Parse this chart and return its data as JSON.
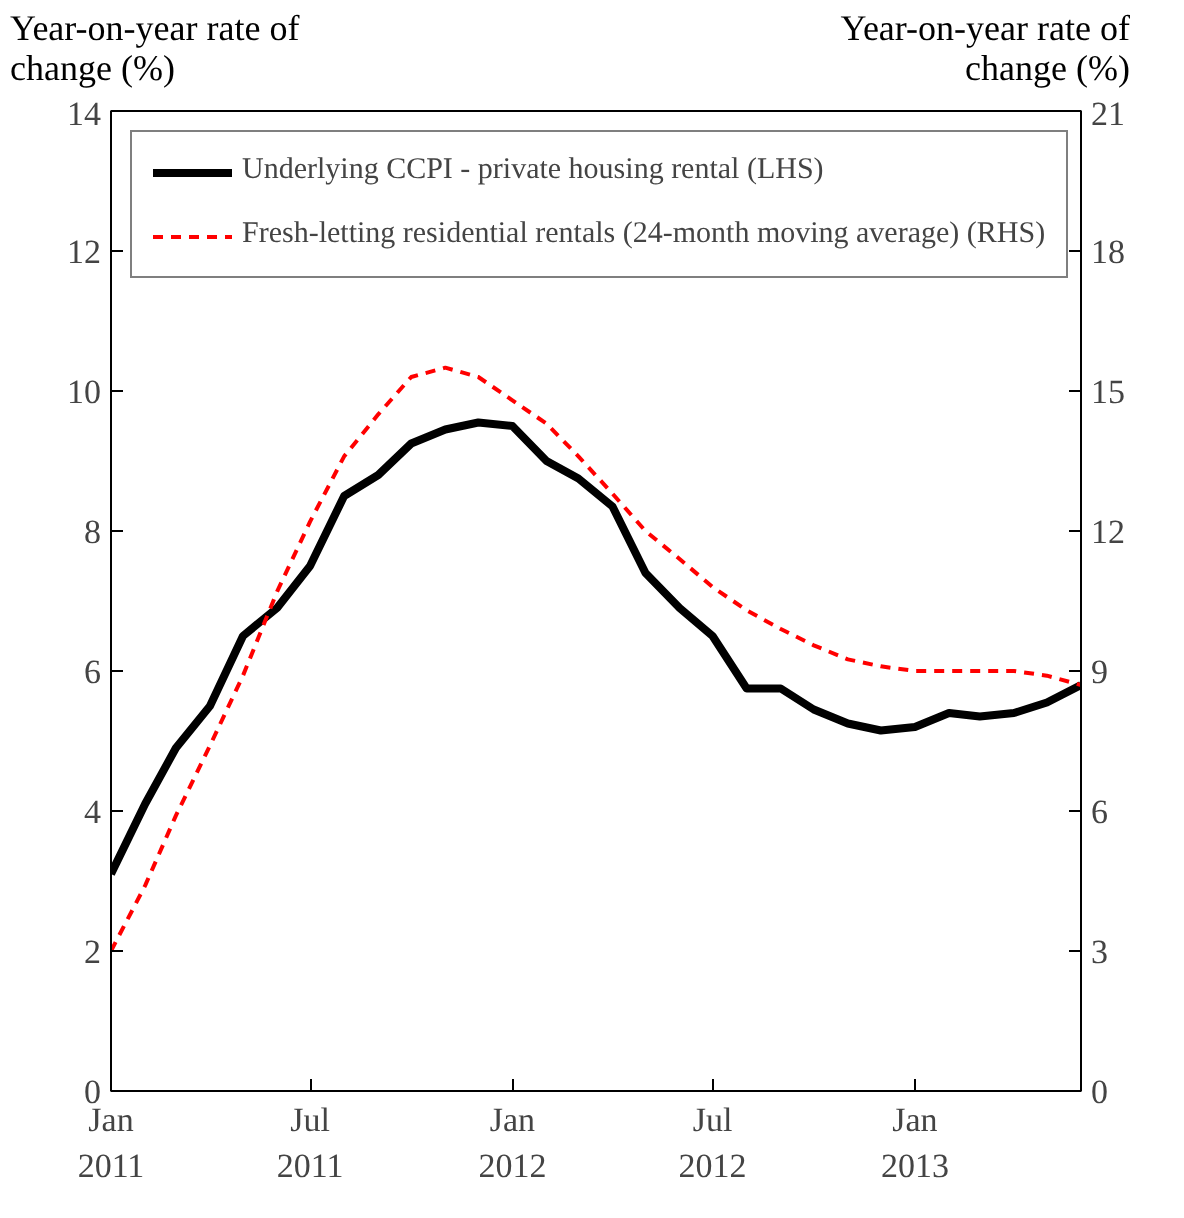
{
  "chart_data": {
    "type": "line",
    "ylabel": "Year-on-year rate of change (%)",
    "y2label": "Year-on-year rate of change (%)",
    "x": [
      "2011-01",
      "2011-02",
      "2011-03",
      "2011-04",
      "2011-05",
      "2011-06",
      "2011-07",
      "2011-08",
      "2011-09",
      "2011-10",
      "2011-11",
      "2011-12",
      "2012-01",
      "2012-02",
      "2012-03",
      "2012-04",
      "2012-05",
      "2012-06",
      "2012-07",
      "2012-08",
      "2012-09",
      "2012-10",
      "2012-11",
      "2012-12",
      "2013-01",
      "2013-02",
      "2013-03",
      "2013-04",
      "2013-05",
      "2013-06"
    ],
    "series": [
      {
        "name": "Underlying CCPI - private housing rental (LHS)",
        "color": "#000000",
        "line_style": "solid",
        "values": [
          3.1,
          4.1,
          4.9,
          5.5,
          6.5,
          6.9,
          7.5,
          8.5,
          8.8,
          9.25,
          9.45,
          9.55,
          9.5,
          9.0,
          8.75,
          8.35,
          7.4,
          6.9,
          6.5,
          5.75,
          5.75,
          5.45,
          5.25,
          5.15,
          5.2,
          5.4,
          5.35,
          5.4,
          5.55,
          5.8
        ]
      },
      {
        "name": "Fresh-letting residential rentals (24-month moving average) (RHS)",
        "color": "#ff0000",
        "line_style": "dashed",
        "axis": "y2",
        "values": [
          3.0,
          4.4,
          5.9,
          7.4,
          8.9,
          10.7,
          12.2,
          13.6,
          14.5,
          15.3,
          15.5,
          15.3,
          14.8,
          14.3,
          13.6,
          12.8,
          12.0,
          11.4,
          10.8,
          10.3,
          9.9,
          9.55,
          9.25,
          9.1,
          9.0,
          9.0,
          9.0,
          9.0,
          8.9,
          8.7
        ]
      }
    ],
    "xlim": [
      "2011-01",
      "2013-06"
    ],
    "xticks": [
      {
        "value": "2011-01",
        "label": "Jan\n2011"
      },
      {
        "value": "2011-07",
        "label": "Jul\n2011"
      },
      {
        "value": "2012-01",
        "label": "Jan\n2012"
      },
      {
        "value": "2012-07",
        "label": "Jul\n2012"
      },
      {
        "value": "2013-01",
        "label": "Jan\n2013"
      }
    ],
    "ylim": [
      0,
      14
    ],
    "yticks": [
      0,
      2,
      4,
      6,
      8,
      10,
      12,
      14
    ],
    "y2lim": [
      0,
      21
    ],
    "y2ticks": [
      0,
      3,
      6,
      9,
      12,
      15,
      18,
      21
    ],
    "grid": false,
    "legend": "top left",
    "marker": "none"
  }
}
